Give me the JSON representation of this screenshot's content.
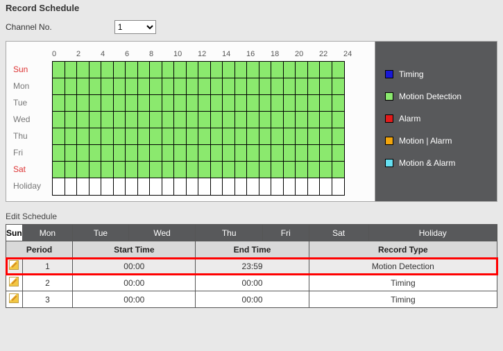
{
  "title": "Record Schedule",
  "channel": {
    "label": "Channel No.",
    "value": "1"
  },
  "hours": [
    "0",
    "2",
    "4",
    "6",
    "8",
    "10",
    "12",
    "14",
    "16",
    "18",
    "20",
    "22",
    "24"
  ],
  "days": [
    {
      "label": "Sun",
      "weekend": true,
      "fill": "green"
    },
    {
      "label": "Mon",
      "weekend": false,
      "fill": "green"
    },
    {
      "label": "Tue",
      "weekend": false,
      "fill": "green"
    },
    {
      "label": "Wed",
      "weekend": false,
      "fill": "green"
    },
    {
      "label": "Thu",
      "weekend": false,
      "fill": "green"
    },
    {
      "label": "Fri",
      "weekend": false,
      "fill": "green"
    },
    {
      "label": "Sat",
      "weekend": true,
      "fill": "green"
    },
    {
      "label": "Holiday",
      "weekend": false,
      "fill": "none"
    }
  ],
  "legend": [
    {
      "label": "Timing",
      "color": "#1818d6"
    },
    {
      "label": "Motion Detection",
      "color": "#8be96e"
    },
    {
      "label": "Alarm",
      "color": "#e21b1b"
    },
    {
      "label": "Motion | Alarm",
      "color": "#f2a50c"
    },
    {
      "label": "Motion & Alarm",
      "color": "#66e0f2"
    }
  ],
  "editLabel": "Edit Schedule",
  "dayTabs": [
    "Sun",
    "Mon",
    "Tue",
    "Wed",
    "Thu",
    "Fri",
    "Sat",
    "Holiday"
  ],
  "activeTab": "Sun",
  "columns": [
    "Period",
    "Start Time",
    "End Time",
    "Record Type"
  ],
  "periods": [
    {
      "n": "1",
      "start": "00:00",
      "end": "23:59",
      "type": "Motion Detection",
      "highlight": true
    },
    {
      "n": "2",
      "start": "00:00",
      "end": "00:00",
      "type": "Timing",
      "highlight": false
    },
    {
      "n": "3",
      "start": "00:00",
      "end": "00:00",
      "type": "Timing",
      "highlight": false
    }
  ]
}
